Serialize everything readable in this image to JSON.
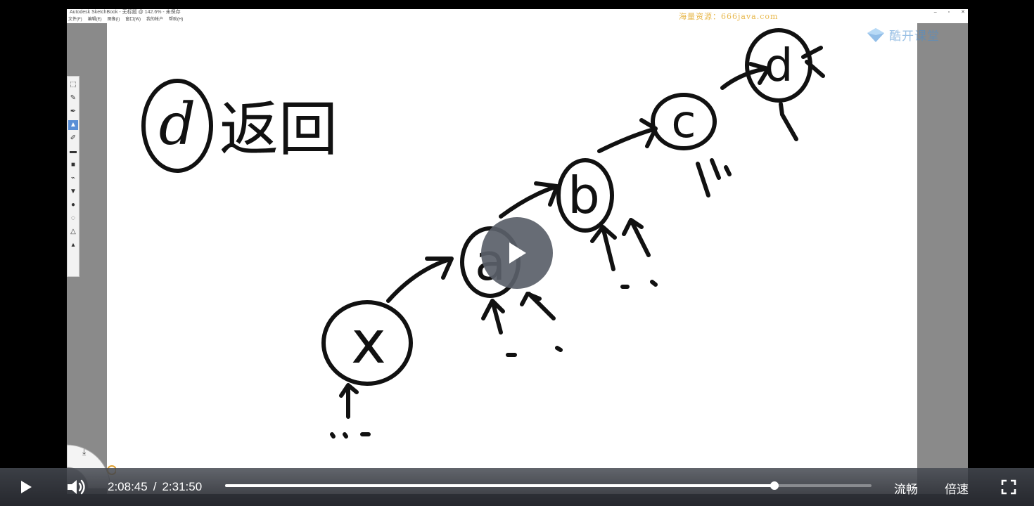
{
  "app": {
    "title": "Autodesk SketchBook - 无标题 @ 142.6% - 未保存",
    "menu": [
      "文件(F)",
      "编辑(E)",
      "图像(I)",
      "窗口(W)",
      "我的帐户",
      "帮助(H)"
    ],
    "window_controls": [
      "–",
      "▫",
      "✕"
    ]
  },
  "watermark": "海量资源：666java.com",
  "brand": {
    "name": "酷开课堂",
    "icon": "diamond-logo-icon"
  },
  "drawing": {
    "heading_marker": "d",
    "heading_text": "返回",
    "nodes": [
      "x",
      "a",
      "b",
      "c",
      "d"
    ]
  },
  "player": {
    "current_time": "2:08:45",
    "separator": "/",
    "duration": "2:31:50",
    "progress": 0.85,
    "quality_label": "流畅",
    "speed_label": "倍速",
    "icons": {
      "play": "play-icon",
      "volume": "volume-icon",
      "fullscreen": "fullscreen-icon",
      "overlay_play": "play-icon"
    }
  }
}
